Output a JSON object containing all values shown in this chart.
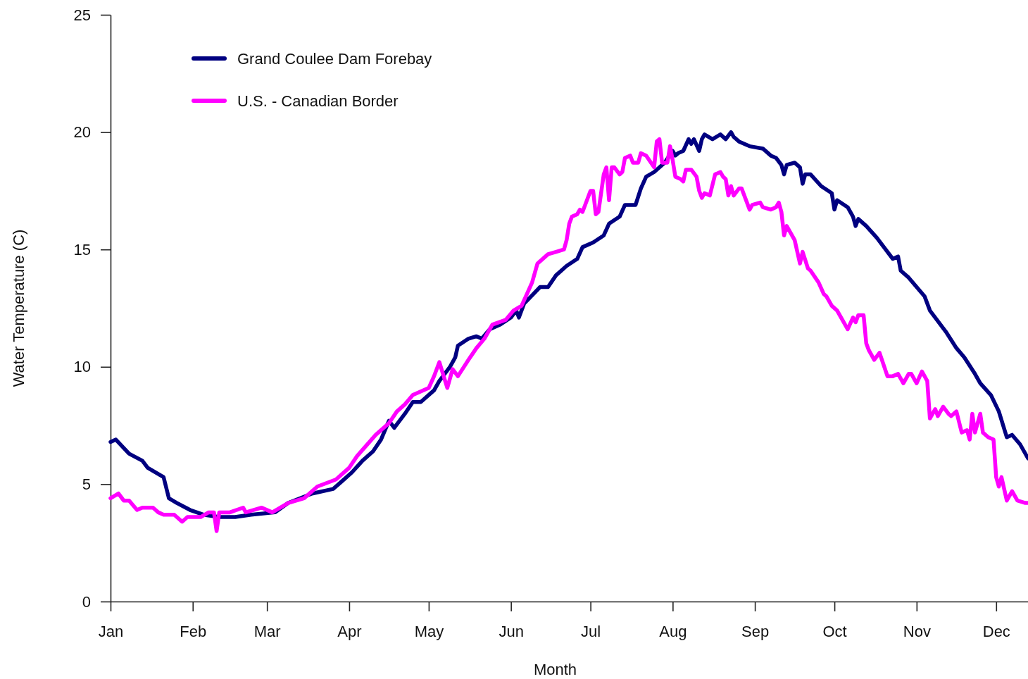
{
  "chart_data": {
    "type": "line",
    "xlabel": "Month",
    "ylabel": "Water Temperature (C)",
    "xlim": [
      "--01-01",
      "--12-13"
    ],
    "xticks": [
      {
        "value": "--01-01",
        "label": "Jan"
      },
      {
        "value": "--02-01",
        "label": "Feb"
      },
      {
        "value": "--03-01",
        "label": "Mar"
      },
      {
        "value": "--04-01",
        "label": "Apr"
      },
      {
        "value": "--05-01",
        "label": "May"
      },
      {
        "value": "--06-01",
        "label": "Jun"
      },
      {
        "value": "--07-01",
        "label": "Jul"
      },
      {
        "value": "--08-01",
        "label": "Aug"
      },
      {
        "value": "--09-01",
        "label": "Sep"
      },
      {
        "value": "--10-01",
        "label": "Oct"
      },
      {
        "value": "--11-01",
        "label": "Nov"
      },
      {
        "value": "--12-01",
        "label": "Dec"
      }
    ],
    "ylim": [
      0,
      25
    ],
    "yticks": [
      0,
      5,
      10,
      15,
      20,
      25
    ],
    "legend": "top left",
    "line_style": "solid",
    "series": [
      {
        "name": "Grand Coulee Dam Forebay",
        "color": "#000080",
        "x": [
          "--01-01",
          "--01-03",
          "--01-08",
          "--01-13",
          "--01-15",
          "--01-21",
          "--01-23",
          "--01-26",
          "--01-31",
          "--02-05",
          "--02-11",
          "--02-17",
          "--02-23",
          "--03-04",
          "--03-09",
          "--03-18",
          "--03-26",
          "--03-29",
          "--04-02",
          "--04-06",
          "--04-10",
          "--04-13",
          "--04-16",
          "--04-18",
          "--04-22",
          "--04-25",
          "--04-28",
          "--05-03",
          "--05-05",
          "--05-09",
          "--05-11",
          "--05-12",
          "--05-16",
          "--05-19",
          "--05-21",
          "--05-24",
          "--05-28",
          "--06-01",
          "--06-03",
          "--06-04",
          "--06-06",
          "--06-12",
          "--06-15",
          "--06-18",
          "--06-22",
          "--06-26",
          "--06-28",
          "--07-02",
          "--07-06",
          "--07-08",
          "--07-12",
          "--07-14",
          "--07-18",
          "--07-20",
          "--07-22",
          "--07-25",
          "--07-29",
          "--08-01",
          "--08-02",
          "--08-03",
          "--08-05",
          "--08-07",
          "--08-08",
          "--08-09",
          "--08-11",
          "--08-12",
          "--08-13",
          "--08-16",
          "--08-19",
          "--08-21",
          "--08-23",
          "--08-24",
          "--08-26",
          "--08-30",
          "--09-04",
          "--09-07",
          "--09-09",
          "--09-11",
          "--09-12",
          "--09-13",
          "--09-16",
          "--09-18",
          "--09-19",
          "--09-20",
          "--09-22",
          "--09-26",
          "--09-30",
          "--10-01",
          "--10-02",
          "--10-06",
          "--10-08",
          "--10-09",
          "--10-10",
          "--10-13",
          "--10-17",
          "--10-19",
          "--10-23",
          "--10-25",
          "--10-26",
          "--10-29",
          "--11-01",
          "--11-04",
          "--11-06",
          "--11-12",
          "--11-16",
          "--11-19",
          "--11-23",
          "--11-25",
          "--11-29",
          "--12-02",
          "--12-05",
          "--12-07",
          "--12-10",
          "--12-13"
        ],
        "values": [
          6.8,
          6.9,
          6.3,
          6.0,
          5.7,
          5.3,
          4.4,
          4.2,
          3.9,
          3.7,
          3.6,
          3.6,
          3.7,
          3.8,
          4.2,
          4.6,
          4.8,
          5.1,
          5.5,
          6.0,
          6.4,
          6.9,
          7.7,
          7.4,
          8.0,
          8.5,
          8.5,
          9.0,
          9.4,
          10.0,
          10.4,
          10.9,
          11.2,
          11.3,
          11.2,
          11.6,
          11.8,
          12.1,
          12.4,
          12.1,
          12.7,
          13.4,
          13.4,
          13.9,
          14.3,
          14.6,
          15.1,
          15.3,
          15.6,
          16.1,
          16.4,
          16.9,
          16.9,
          17.6,
          18.1,
          18.3,
          18.7,
          19.2,
          19.0,
          19.1,
          19.2,
          19.7,
          19.5,
          19.7,
          19.2,
          19.7,
          19.9,
          19.7,
          19.9,
          19.7,
          20.0,
          19.8,
          19.6,
          19.4,
          19.3,
          19.0,
          18.9,
          18.6,
          18.2,
          18.6,
          18.7,
          18.5,
          17.8,
          18.2,
          18.2,
          17.7,
          17.4,
          16.7,
          17.1,
          16.8,
          16.4,
          16.0,
          16.3,
          16.0,
          15.5,
          15.2,
          14.6,
          14.7,
          14.1,
          13.8,
          13.4,
          13.0,
          12.4,
          11.5,
          10.8,
          10.4,
          9.7,
          9.3,
          8.8,
          8.1,
          7.0,
          7.1,
          6.7,
          6.1
        ]
      },
      {
        "name": "U.S. - Canadian Border",
        "color": "#ff00ff",
        "x": [
          "--01-01",
          "--01-04",
          "--01-06",
          "--01-08",
          "--01-11",
          "--01-13",
          "--01-17",
          "--01-19",
          "--01-21",
          "--01-25",
          "--01-28",
          "--01-30",
          "--02-04",
          "--02-07",
          "--02-09",
          "--02-10",
          "--02-11",
          "--02-15",
          "--02-20",
          "--02-21",
          "--02-27",
          "--03-03",
          "--03-09",
          "--03-15",
          "--03-20",
          "--03-27",
          "--04-01",
          "--04-04",
          "--04-11",
          "--04-16",
          "--04-19",
          "--04-22",
          "--04-25",
          "--05-01",
          "--05-03",
          "--05-05",
          "--05-08",
          "--05-10",
          "--05-12",
          "--05-16",
          "--05-19",
          "--05-22",
          "--05-25",
          "--05-30",
          "--06-02",
          "--06-05",
          "--06-07",
          "--06-09",
          "--06-11",
          "--06-12",
          "--06-15",
          "--06-18",
          "--06-21",
          "--06-22",
          "--06-23",
          "--06-24",
          "--06-26",
          "--06-27",
          "--06-28",
          "--07-01",
          "--07-02",
          "--07-03",
          "--07-04",
          "--07-06",
          "--07-07",
          "--07-08",
          "--07-09",
          "--07-10",
          "--07-12",
          "--07-13",
          "--07-14",
          "--07-16",
          "--07-17",
          "--07-19",
          "--07-20",
          "--07-22",
          "--07-25",
          "--07-26",
          "--07-27",
          "--07-28",
          "--07-29",
          "--07-30",
          "--07-31",
          "--08-01",
          "--08-02",
          "--08-04",
          "--08-05",
          "--08-06",
          "--08-08",
          "--08-10",
          "--08-11",
          "--08-12",
          "--08-13",
          "--08-15",
          "--08-17",
          "--08-19",
          "--08-20",
          "--08-21",
          "--08-22",
          "--08-23",
          "--08-24",
          "--08-26",
          "--08-27",
          "--08-30",
          "--08-31",
          "--09-03",
          "--09-04",
          "--09-07",
          "--09-09",
          "--09-10",
          "--09-11",
          "--09-12",
          "--09-13",
          "--09-16",
          "--09-18",
          "--09-19",
          "--09-21",
          "--09-22",
          "--09-25",
          "--09-27",
          "--09-28",
          "--09-30",
          "--10-02",
          "--10-04",
          "--10-06",
          "--10-08",
          "--10-09",
          "--10-10",
          "--10-12",
          "--10-13",
          "--10-14",
          "--10-16",
          "--10-18",
          "--10-21",
          "--10-23",
          "--10-25",
          "--10-27",
          "--10-29",
          "--10-30",
          "--11-01",
          "--11-03",
          "--11-05",
          "--11-06",
          "--11-08",
          "--11-09",
          "--11-11",
          "--11-13",
          "--11-14",
          "--11-16",
          "--11-18",
          "--11-20",
          "--11-21",
          "--11-22",
          "--11-23",
          "--11-25",
          "--11-26",
          "--11-28",
          "--11-30",
          "--12-01",
          "--12-02",
          "--12-03",
          "--12-05",
          "--12-07",
          "--12-09",
          "--12-12",
          "--12-13"
        ],
        "values": [
          4.4,
          4.6,
          4.3,
          4.3,
          3.9,
          4.0,
          4.0,
          3.8,
          3.7,
          3.7,
          3.4,
          3.6,
          3.6,
          3.8,
          3.8,
          3.0,
          3.8,
          3.8,
          4.0,
          3.8,
          4.0,
          3.8,
          4.2,
          4.4,
          4.9,
          5.2,
          5.7,
          6.2,
          7.1,
          7.6,
          8.1,
          8.4,
          8.8,
          9.1,
          9.6,
          10.2,
          9.1,
          9.9,
          9.6,
          10.3,
          10.8,
          11.2,
          11.8,
          12.0,
          12.4,
          12.6,
          13.1,
          13.6,
          14.4,
          14.5,
          14.8,
          14.9,
          15.0,
          15.4,
          16.1,
          16.4,
          16.5,
          16.7,
          16.6,
          17.5,
          17.5,
          16.5,
          16.6,
          18.2,
          18.5,
          17.1,
          18.5,
          18.5,
          18.2,
          18.3,
          18.9,
          19.0,
          18.7,
          18.7,
          19.1,
          19.0,
          18.5,
          19.6,
          19.7,
          18.7,
          18.7,
          18.7,
          19.4,
          18.8,
          18.1,
          18.0,
          17.9,
          18.4,
          18.4,
          18.1,
          17.5,
          17.2,
          17.4,
          17.3,
          18.2,
          18.3,
          18.1,
          18.0,
          17.3,
          17.7,
          17.3,
          17.6,
          17.6,
          16.7,
          16.9,
          17.0,
          16.8,
          16.7,
          16.8,
          17.0,
          16.6,
          15.6,
          16.0,
          15.4,
          14.4,
          14.9,
          14.2,
          14.1,
          13.6,
          13.1,
          13.0,
          12.6,
          12.4,
          12.0,
          11.6,
          12.1,
          11.9,
          12.2,
          12.2,
          11.0,
          10.7,
          10.3,
          10.6,
          9.6,
          9.6,
          9.7,
          9.3,
          9.7,
          9.7,
          9.3,
          9.8,
          9.4,
          7.8,
          8.2,
          7.9,
          8.3,
          8.0,
          7.9,
          8.1,
          7.2,
          7.3,
          6.9,
          8.0,
          7.2,
          8.0,
          7.2,
          7.0,
          6.9,
          5.3,
          4.9,
          5.3,
          4.3,
          4.7,
          4.3,
          4.2,
          4.2
        ]
      }
    ]
  }
}
